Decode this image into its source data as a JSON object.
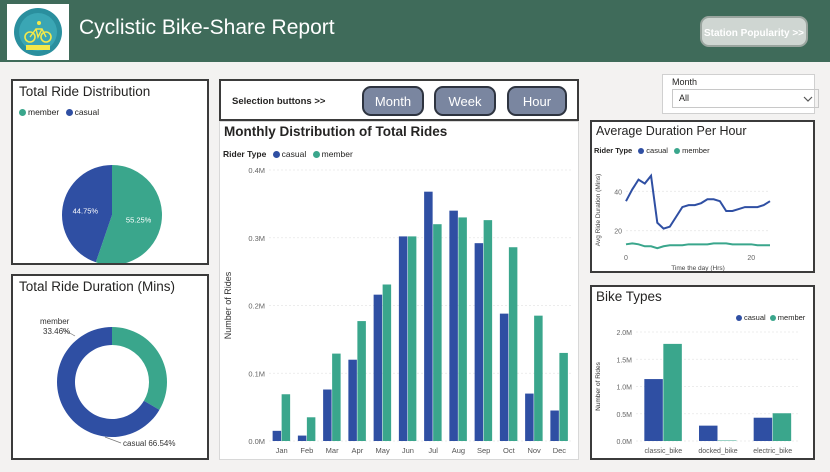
{
  "header": {
    "title": "Cyclistic Bike-Share Report",
    "logo_icon": "cyclist-logo-icon",
    "station_button": "Station Popularity >>",
    "bg": "#3f6b5a"
  },
  "selection": {
    "label": "Selection buttons >>",
    "buttons": [
      "Month",
      "Week",
      "Hour"
    ]
  },
  "slicer": {
    "label": "Month",
    "value": "All"
  },
  "colors": {
    "casual": "#2f4fa3",
    "member": "#3aa68c"
  },
  "chart_data": [
    {
      "id": "distribution",
      "type": "pie",
      "title": "Total Ride Distribution",
      "legend": [
        "member",
        "casual"
      ],
      "slices": [
        {
          "name": "member",
          "value": 55.25,
          "label": "55.25%"
        },
        {
          "name": "casual",
          "value": 44.75,
          "label": "44.75%"
        }
      ]
    },
    {
      "id": "duration",
      "type": "pie",
      "title": "Total Ride Duration (Mins)",
      "slices": [
        {
          "name": "member",
          "value": 33.46,
          "label": "member",
          "pct": "33.46%"
        },
        {
          "name": "casual",
          "value": 66.54,
          "label": "casual 66.54%"
        }
      ]
    },
    {
      "id": "monthly",
      "type": "bar",
      "title": "Monthly Distribution of Total Rides",
      "legend_title": "Rider Type",
      "ylabel": "Number of Rides",
      "ylim": [
        0,
        400000
      ],
      "yticks": [
        "0.0M",
        "0.1M",
        "0.2M",
        "0.3M",
        "0.4M"
      ],
      "categories": [
        "Jan",
        "Feb",
        "Mar",
        "Apr",
        "May",
        "Jun",
        "Jul",
        "Aug",
        "Sep",
        "Oct",
        "Nov",
        "Dec"
      ],
      "series": [
        {
          "name": "casual",
          "values": [
            15000,
            8000,
            76000,
            120000,
            216000,
            302000,
            368000,
            340000,
            292000,
            188000,
            70000,
            45000
          ]
        },
        {
          "name": "member",
          "values": [
            69000,
            35000,
            129000,
            177000,
            231000,
            302000,
            320000,
            330000,
            326000,
            286000,
            185000,
            130000
          ]
        }
      ]
    },
    {
      "id": "hourly",
      "type": "line",
      "title": "Average Duration Per Hour",
      "legend_title": "Rider Type",
      "xlabel": "Time the day (Hrs)",
      "ylabel": "Avg Ride Duration (Mins)",
      "xlim": [
        0,
        23
      ],
      "ylim": [
        5,
        55
      ],
      "yticks": [
        "20",
        "40"
      ],
      "xticks": [
        "0",
        "20"
      ],
      "x": [
        0,
        1,
        2,
        3,
        4,
        5,
        6,
        7,
        8,
        9,
        10,
        11,
        12,
        13,
        14,
        15,
        16,
        17,
        18,
        19,
        20,
        21,
        22,
        23
      ],
      "series": [
        {
          "name": "casual",
          "values": [
            35,
            41,
            46,
            44,
            48,
            24,
            21,
            22,
            27,
            32,
            33,
            33,
            34,
            36,
            36,
            35,
            30,
            30,
            31,
            32,
            32,
            32,
            33,
            35
          ]
        },
        {
          "name": "member",
          "values": [
            13,
            13.5,
            13,
            12,
            12,
            11,
            12,
            12.5,
            12.5,
            12.5,
            13,
            13,
            13,
            13,
            13.5,
            13.5,
            13.5,
            13,
            13,
            13,
            13,
            12.5,
            12.5,
            12.5
          ]
        }
      ]
    },
    {
      "id": "biketypes",
      "type": "bar",
      "title": "Bike Types",
      "ylabel": "Number of Rides",
      "ylim": [
        0,
        2200000
      ],
      "yticks": [
        "0.0M",
        "0.5M",
        "1.0M",
        "1.5M",
        "2.0M"
      ],
      "categories": [
        "classic_bike",
        "docked_bike",
        "electric_bike"
      ],
      "series": [
        {
          "name": "casual",
          "values": [
            1250000,
            310000,
            470000
          ]
        },
        {
          "name": "member",
          "values": [
            1960000,
            10000,
            560000
          ]
        }
      ]
    }
  ]
}
